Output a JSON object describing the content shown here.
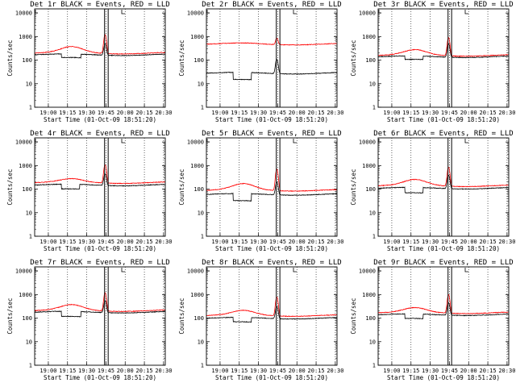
{
  "common": {
    "ylabel": "Counts/sec",
    "xlabel": "Start Time (01-Oct-09 18:51:20)",
    "xtick_labels": [
      "19:00",
      "19:15",
      "19:30",
      "19:45",
      "20:00",
      "20:15",
      "20:30"
    ],
    "ytick_labels": [
      "1",
      "10",
      "100",
      "1000",
      "10000"
    ],
    "colors": {
      "events": "#000000",
      "lld": "#ff0000",
      "axes": "#000000"
    }
  },
  "chart_data": [
    {
      "type": "line",
      "title": "Det 1r BLACK = Events, RED = LLD",
      "yscale": "log",
      "ylim": [
        1,
        15000
      ],
      "x_range_minutes": [
        -2,
        100
      ],
      "series": [
        {
          "name": "Events",
          "color": "#000000",
          "base": 170,
          "dip": {
            "from": 19,
            "to": 34,
            "value": 120
          },
          "peak_at": 53,
          "peak": 500
        },
        {
          "name": "LLD",
          "color": "#ff0000",
          "base": 200,
          "bump": {
            "center": 27,
            "width": 12,
            "value": 350
          },
          "peak_at": 53,
          "peak": 1200
        }
      ]
    },
    {
      "type": "line",
      "title": "Det 2r BLACK = Events, RED = LLD",
      "yscale": "log",
      "ylim": [
        1,
        15000
      ],
      "x_range_minutes": [
        -2,
        100
      ],
      "series": [
        {
          "name": "Events",
          "color": "#000000",
          "base": 28,
          "dip": {
            "from": 19,
            "to": 33,
            "value": 14
          },
          "peak_at": 53,
          "peak": 110
        },
        {
          "name": "LLD",
          "color": "#ff0000",
          "base": 480,
          "bump": {
            "center": 27,
            "width": 12,
            "value": 500
          },
          "peak_at": 53,
          "peak": 850
        }
      ]
    },
    {
      "type": "line",
      "title": "Det 3r BLACK = Events, RED = LLD",
      "yscale": "log",
      "ylim": [
        1,
        15000
      ],
      "x_range_minutes": [
        -2,
        100
      ],
      "series": [
        {
          "name": "Events",
          "color": "#000000",
          "base": 140,
          "dip": {
            "from": 19,
            "to": 33,
            "value": 100
          },
          "peak_at": 53,
          "peak": 500
        },
        {
          "name": "LLD",
          "color": "#ff0000",
          "base": 160,
          "bump": {
            "center": 27,
            "width": 12,
            "value": 260
          },
          "peak_at": 53,
          "peak": 900
        }
      ]
    },
    {
      "type": "line",
      "title": "Det 4r BLACK = Events, RED = LLD",
      "yscale": "log",
      "ylim": [
        1,
        15000
      ],
      "x_range_minutes": [
        -2,
        100
      ],
      "series": [
        {
          "name": "Events",
          "color": "#000000",
          "base": 150,
          "dip": {
            "from": 19,
            "to": 33,
            "value": 95
          },
          "peak_at": 53,
          "peak": 450
        },
        {
          "name": "LLD",
          "color": "#ff0000",
          "base": 190,
          "bump": {
            "center": 27,
            "width": 12,
            "value": 260
          },
          "peak_at": 53,
          "peak": 1100
        }
      ]
    },
    {
      "type": "line",
      "title": "Det 5r BLACK = Events, RED = LLD",
      "yscale": "log",
      "ylim": [
        1,
        15000
      ],
      "x_range_minutes": [
        -2,
        100
      ],
      "series": [
        {
          "name": "Events",
          "color": "#000000",
          "base": 60,
          "dip": {
            "from": 19,
            "to": 33,
            "value": 30
          },
          "peak_at": 53,
          "peak": 200
        },
        {
          "name": "LLD",
          "color": "#ff0000",
          "base": 90,
          "bump": {
            "center": 27,
            "width": 12,
            "value": 160
          },
          "peak_at": 53,
          "peak": 700
        }
      ]
    },
    {
      "type": "line",
      "title": "Det 6r BLACK = Events, RED = LLD",
      "yscale": "log",
      "ylim": [
        1,
        15000
      ],
      "x_range_minutes": [
        -2,
        100
      ],
      "series": [
        {
          "name": "Events",
          "color": "#000000",
          "base": 110,
          "dip": {
            "from": 19,
            "to": 33,
            "value": 65
          },
          "peak_at": 53,
          "peak": 400
        },
        {
          "name": "LLD",
          "color": "#ff0000",
          "base": 140,
          "bump": {
            "center": 27,
            "width": 12,
            "value": 240
          },
          "peak_at": 53,
          "peak": 850
        }
      ]
    },
    {
      "type": "line",
      "title": "Det 7r BLACK = Events, RED = LLD",
      "yscale": "log",
      "ylim": [
        1,
        15000
      ],
      "x_range_minutes": [
        -2,
        100
      ],
      "series": [
        {
          "name": "Events",
          "color": "#000000",
          "base": 180,
          "dip": {
            "from": 19,
            "to": 34,
            "value": 110
          },
          "peak_at": 53,
          "peak": 550
        },
        {
          "name": "LLD",
          "color": "#ff0000",
          "base": 210,
          "bump": {
            "center": 27,
            "width": 12,
            "value": 350
          },
          "peak_at": 53,
          "peak": 1200
        }
      ]
    },
    {
      "type": "line",
      "title": "Det 8r BLACK = Events, RED = LLD",
      "yscale": "log",
      "ylim": [
        1,
        15000
      ],
      "x_range_minutes": [
        -2,
        100
      ],
      "series": [
        {
          "name": "Events",
          "color": "#000000",
          "base": 100,
          "dip": {
            "from": 19,
            "to": 33,
            "value": 65
          },
          "peak_at": 53,
          "peak": 320
        },
        {
          "name": "LLD",
          "color": "#ff0000",
          "base": 130,
          "bump": {
            "center": 27,
            "width": 12,
            "value": 200
          },
          "peak_at": 53,
          "peak": 800
        }
      ]
    },
    {
      "type": "line",
      "title": "Det 9r BLACK = Events, RED = LLD",
      "yscale": "log",
      "ylim": [
        1,
        15000
      ],
      "x_range_minutes": [
        -2,
        100
      ],
      "series": [
        {
          "name": "Events",
          "color": "#000000",
          "base": 140,
          "dip": {
            "from": 19,
            "to": 33,
            "value": 90
          },
          "peak_at": 53,
          "peak": 450
        },
        {
          "name": "LLD",
          "color": "#ff0000",
          "base": 170,
          "bump": {
            "center": 27,
            "width": 12,
            "value": 260
          },
          "peak_at": 53,
          "peak": 1000
        }
      ]
    }
  ]
}
